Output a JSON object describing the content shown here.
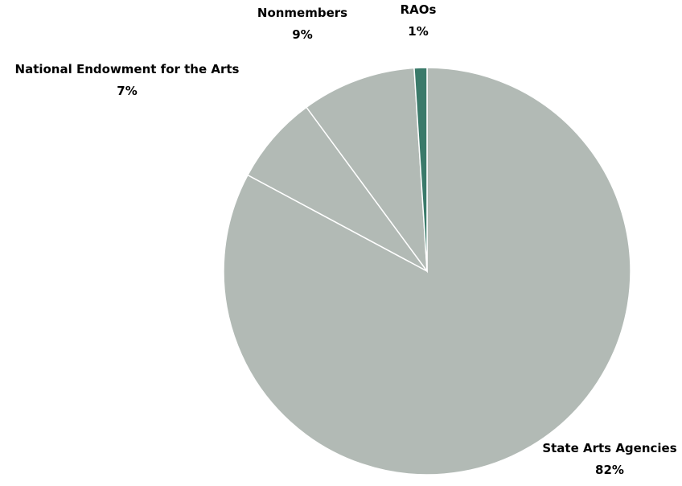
{
  "chart_data": {
    "type": "pie",
    "categories": [
      "State Arts Agencies",
      "National Endowment for the Arts",
      "Nonmembers",
      "RAOs"
    ],
    "values": [
      82,
      7,
      9,
      1
    ],
    "value_labels": [
      "82%",
      "7%",
      "9%",
      "1%"
    ],
    "colors": [
      "#b2bab5",
      "#b2bab5",
      "#b2bab5",
      "#3a7a6a"
    ]
  }
}
